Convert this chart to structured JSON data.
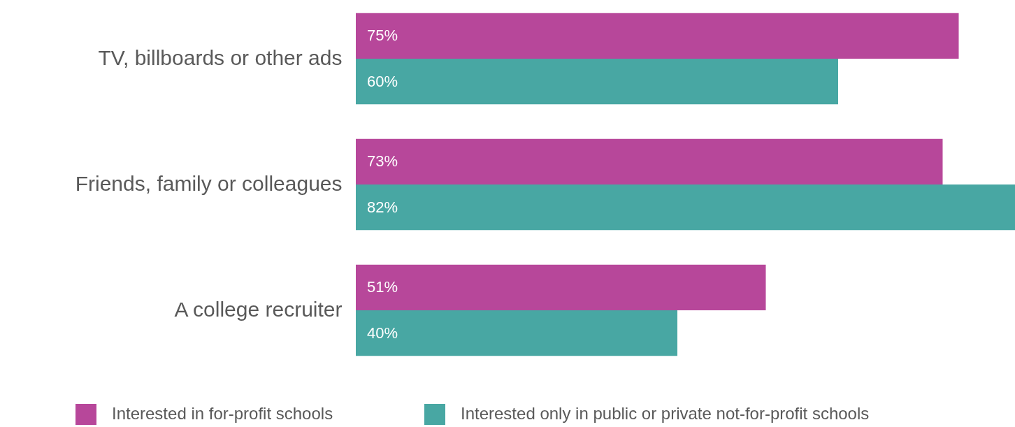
{
  "chart_data": {
    "type": "bar",
    "orientation": "horizontal",
    "legend": "bottom",
    "grid": false,
    "categories": [
      "TV, billboards or other ads",
      "Friends, family or colleagues",
      "A college recruiter"
    ],
    "series": [
      {
        "name": "Interested in for-profit schools",
        "color": "#b7479a",
        "values": [
          75,
          73,
          51
        ],
        "value_labels": [
          "75%",
          "73%",
          "51%"
        ]
      },
      {
        "name": "Interested only in public or private not-for-profit schools",
        "color": "#48a7a3",
        "values": [
          60,
          82,
          40
        ],
        "value_labels": [
          "60%",
          "82%",
          "40%"
        ]
      }
    ]
  }
}
